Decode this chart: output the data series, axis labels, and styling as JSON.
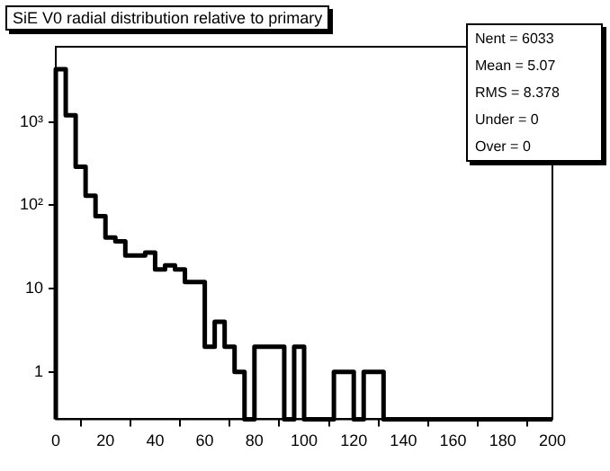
{
  "chart_data": {
    "type": "histogram",
    "title": "SiE V0 radial distribution relative to primary",
    "bins": [
      0,
      4,
      8,
      12,
      16,
      20,
      24,
      28,
      32,
      36,
      40,
      44,
      48,
      52,
      56,
      60,
      64,
      68,
      72,
      76,
      80,
      84,
      88,
      92,
      96,
      100,
      104,
      108,
      112,
      116,
      120,
      124,
      128,
      132,
      136,
      140,
      144,
      148,
      152,
      156,
      160,
      164,
      168,
      172,
      176,
      180,
      184,
      188,
      192,
      196,
      200
    ],
    "values": [
      4300,
      1200,
      290,
      130,
      74,
      41,
      37,
      25,
      25,
      27,
      17,
      19,
      17,
      12,
      12,
      2,
      4,
      2,
      1,
      null,
      2,
      2,
      2,
      null,
      2,
      null,
      null,
      null,
      1,
      1,
      null,
      1,
      1,
      null,
      null,
      null,
      null,
      null,
      null,
      null,
      null,
      null,
      null,
      null,
      null,
      null,
      null,
      null,
      null,
      null
    ],
    "color": "#000000",
    "log": "y",
    "grid": false,
    "legend": false,
    "xlim": [
      0,
      200
    ],
    "xticks": [
      0,
      20,
      40,
      60,
      80,
      100,
      120,
      140,
      160,
      180,
      200
    ],
    "ylim": [
      0.27,
      8000
    ],
    "yticks": [
      1,
      10,
      {
        "value": 100,
        "label": "10²"
      },
      {
        "value": 1000,
        "label": "10³"
      }
    ],
    "annotations": [
      "Nent = 6033",
      "Mean = 5.07",
      "RMS = 8.378",
      "Under = 0",
      "Over = 0"
    ]
  }
}
